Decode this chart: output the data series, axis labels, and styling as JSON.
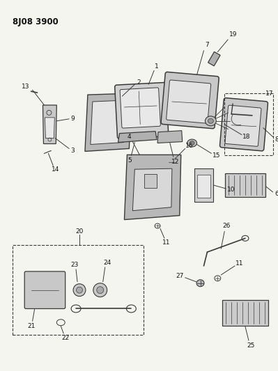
{
  "title": "8J08 3900",
  "bg_color": "#f5f5f0",
  "line_color": "#3a3a3a",
  "text_color": "#111111",
  "fig_width": 3.99,
  "fig_height": 5.33,
  "dpi": 100
}
